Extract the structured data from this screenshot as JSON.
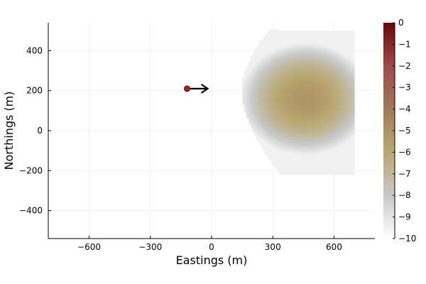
{
  "chart_data": {
    "type": "heatmap",
    "title": "",
    "xlabel": "Eastings (m)",
    "ylabel": "Northings (m)",
    "xlim": [
      -800,
      800
    ],
    "ylim": [
      -540,
      540
    ],
    "x_ticks": [
      -600,
      -300,
      0,
      300,
      600
    ],
    "x_tick_labels": [
      "−600",
      "−300",
      "0",
      "300",
      "600"
    ],
    "y_ticks": [
      -400,
      -200,
      0,
      200,
      400
    ],
    "y_tick_labels": [
      "−400",
      "−200",
      "0",
      "200",
      "400"
    ],
    "grid": true,
    "colorbar": {
      "range": [
        -10,
        0
      ],
      "ticks": [
        0,
        -1,
        -2,
        -3,
        -4,
        -5,
        -6,
        -7,
        -8,
        -9,
        -10
      ],
      "tick_labels": [
        "0",
        "−1",
        "−2",
        "−3",
        "−4",
        "−5",
        "−6",
        "−7",
        "−8",
        "−9",
        "−10"
      ],
      "colors": [
        "#ffffff",
        "#c8c8c8",
        "#b9a870",
        "#a07a5a",
        "#a04848",
        "#680808"
      ]
    },
    "field": {
      "extent_x": [
        140,
        700
      ],
      "extent_y": [
        -220,
        500
      ],
      "center": [
        460,
        160
      ],
      "apex_x": 140,
      "apex_y": 200,
      "value_range_shown": [
        -9.5,
        -5.2
      ]
    },
    "source": {
      "x": -120,
      "y": 210,
      "color": "#c0141c",
      "direction": "east"
    }
  }
}
